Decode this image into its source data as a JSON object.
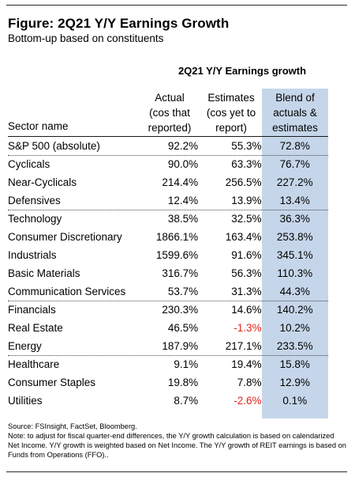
{
  "figure": {
    "title": "Figure: 2Q21 Y/Y Earnings Growth",
    "subtitle": "Bottom-up based on constituents",
    "group_title": "2Q21 Y/Y Earnings growth"
  },
  "columns": {
    "sector": "Sector name",
    "actual": [
      "Actual",
      "(cos that",
      "reported)"
    ],
    "estimates": [
      "Estimates",
      "(cos yet to",
      "report)"
    ],
    "blend": [
      "Blend of",
      "actuals &",
      "estimates"
    ]
  },
  "colors": {
    "blend_highlight": "#c6d6ea",
    "negative": "#e0241b"
  },
  "chart_data": {
    "type": "table",
    "title": "Figure: 2Q21 Y/Y Earnings Growth",
    "subtitle": "Bottom-up based on constituents",
    "columns": [
      "Sector name",
      "Actual (cos that reported)",
      "Estimates (cos yet to report)",
      "Blend of actuals & estimates"
    ],
    "groups": [
      {
        "rows": [
          {
            "sector": "S&P 500 (absolute)",
            "actual": "92.2%",
            "estimates": "55.3%",
            "blend": "72.8%"
          }
        ]
      },
      {
        "rows": [
          {
            "sector": "Cyclicals",
            "actual": "90.0%",
            "estimates": "63.3%",
            "blend": "76.7%"
          },
          {
            "sector": "Near-Cyclicals",
            "actual": "214.4%",
            "estimates": "256.5%",
            "blend": "227.2%"
          },
          {
            "sector": "Defensives",
            "actual": "12.4%",
            "estimates": "13.9%",
            "blend": "13.4%"
          }
        ]
      },
      {
        "rows": [
          {
            "sector": "Technology",
            "actual": "38.5%",
            "estimates": "32.5%",
            "blend": "36.3%"
          },
          {
            "sector": "Consumer Discretionary",
            "actual": "1866.1%",
            "estimates": "163.4%",
            "blend": "253.8%"
          },
          {
            "sector": "Industrials",
            "actual": "1599.6%",
            "estimates": "91.6%",
            "blend": "345.1%"
          },
          {
            "sector": "Basic Materials",
            "actual": "316.7%",
            "estimates": "56.3%",
            "blend": "110.3%"
          },
          {
            "sector": "Communication Services",
            "actual": "53.7%",
            "estimates": "31.3%",
            "blend": "44.3%"
          }
        ]
      },
      {
        "rows": [
          {
            "sector": "Financials",
            "actual": "230.3%",
            "estimates": "14.6%",
            "blend": "140.2%"
          },
          {
            "sector": "Real Estate",
            "actual": "46.5%",
            "estimates": "-1.3%",
            "blend": "10.2%"
          },
          {
            "sector": "Energy",
            "actual": "187.9%",
            "estimates": "217.1%",
            "blend": "233.5%"
          }
        ]
      },
      {
        "rows": [
          {
            "sector": "Healthcare",
            "actual": "9.1%",
            "estimates": "19.4%",
            "blend": "15.8%"
          },
          {
            "sector": "Consumer Staples",
            "actual": "19.8%",
            "estimates": "7.8%",
            "blend": "12.9%"
          },
          {
            "sector": "Utilities",
            "actual": "8.7%",
            "estimates": "-2.6%",
            "blend": "0.1%"
          }
        ]
      }
    ]
  },
  "notes": {
    "source": "Source: FSInsight, FactSet, Bloomberg.",
    "note": "Note: to adjust for fiscal quarter-end differences, the Y/Y growth calculation is based on calendarized Net Income. Y/Y growth is weighted based on Net Income. The Y/Y growth of REIT earnings is based on Funds from Operations (FFO).."
  }
}
